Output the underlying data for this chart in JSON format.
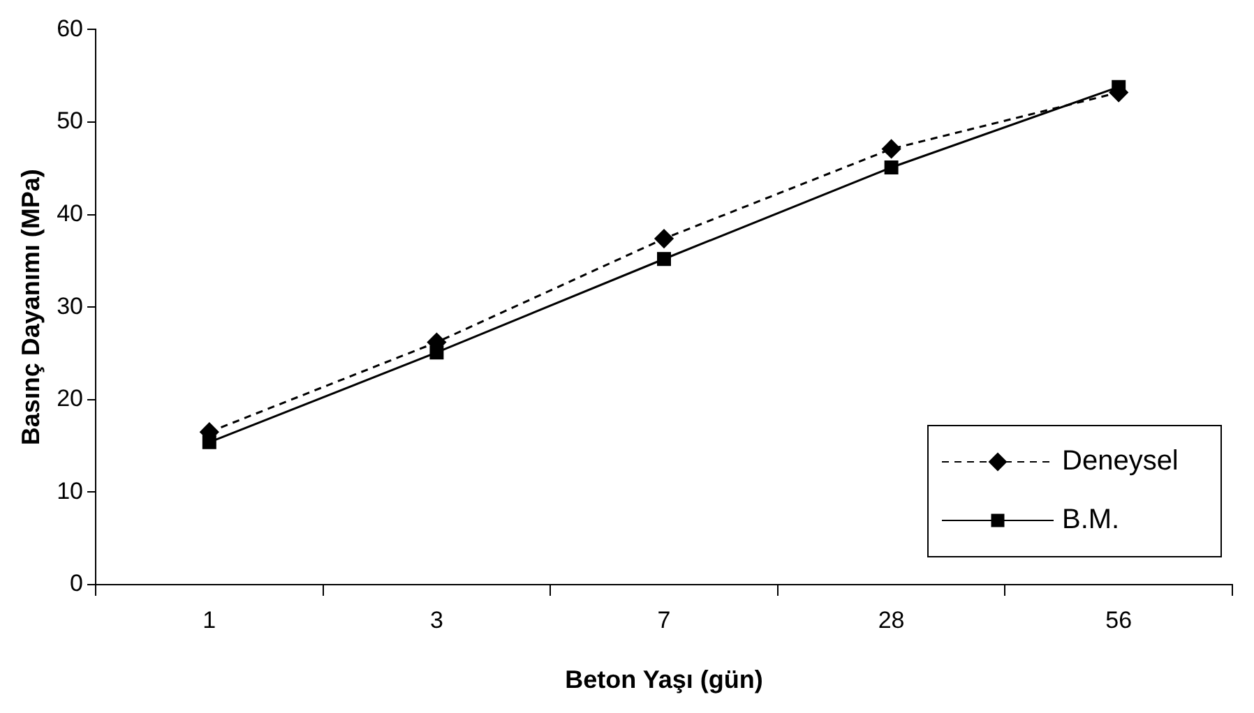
{
  "chart_data": {
    "type": "line",
    "xlabel": "Beton Yaşı (gün)",
    "ylabel": "Basınç Dayanımı (MPa)",
    "categories": [
      "1",
      "3",
      "7",
      "28",
      "56"
    ],
    "series": [
      {
        "name": "Deneysel",
        "color": "#000000",
        "values": [
          16.5,
          26.2,
          37.4,
          47.1,
          53.2
        ],
        "marker": "diamond",
        "line_style": "dashed"
      },
      {
        "name": "B.M.",
        "color": "#000000",
        "values": [
          15.4,
          25.1,
          35.2,
          45.1,
          53.8
        ],
        "marker": "square",
        "line_style": "solid"
      }
    ],
    "ylim": [
      0,
      60
    ],
    "yticks": [
      0,
      10,
      20,
      30,
      40,
      50,
      60
    ],
    "grid": false,
    "legend": "bottom right"
  }
}
